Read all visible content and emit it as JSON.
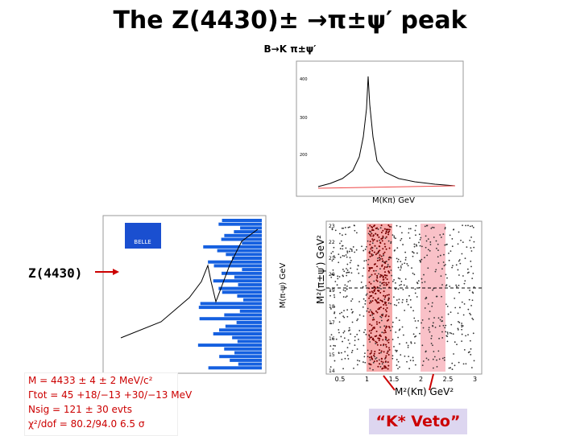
{
  "title": "The Z(4430)± →π±ψ′ peak",
  "subtitle": "B→K π±ψ′",
  "top_plot": {
    "x_label": "M(Kπ) GeV",
    "yticks": [
      "200",
      "300",
      "400"
    ]
  },
  "left_plot": {
    "logo": "BELLE",
    "arrow_label": "Z(4430)",
    "x_label": "M(π-ψ) GeV"
  },
  "scatter": {
    "y_label": "M²(π±ψ′) GeV²",
    "x_label": "M²(Kπ) GeV²",
    "yticks": [
      "14",
      "15",
      "16",
      "17",
      "18",
      "19",
      "20",
      "21",
      "22",
      "23"
    ],
    "xticks": [
      "0.5",
      "1",
      "1.5",
      "2",
      "2.5",
      "3"
    ]
  },
  "veto_label": "“K* Veto”",
  "fit_results": [
    "M = 4433 ± 4 ± 2 MeV/c²",
    "Γtot = 45 +18/−13 +30/−13 MeV",
    "Nsig = 121 ± 30 evts",
    "χ²/dof = 80.2/94.0   6.5 σ"
  ]
}
